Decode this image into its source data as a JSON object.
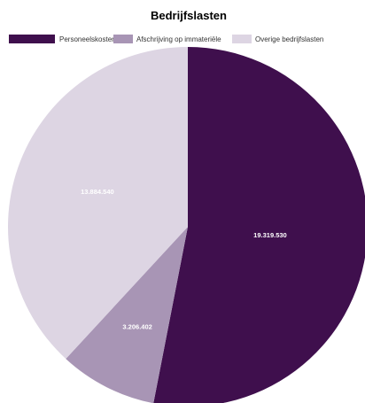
{
  "chart_data": {
    "type": "pie",
    "title": "Bedrijfslasten",
    "legend_position": "top",
    "series": [
      {
        "name": "Bedrijfslasten",
        "labels": [
          "Personeelskosten",
          "Afschrijving op immateriële",
          "Overige bedrijfslasten"
        ],
        "values": [
          19319530,
          3206402,
          13884540
        ],
        "display_values": [
          "19.319.530",
          "3.206.402",
          "13.884.540"
        ],
        "colors": [
          "#3f0f4d",
          "#a895b5",
          "#ddd5e3"
        ]
      }
    ]
  }
}
